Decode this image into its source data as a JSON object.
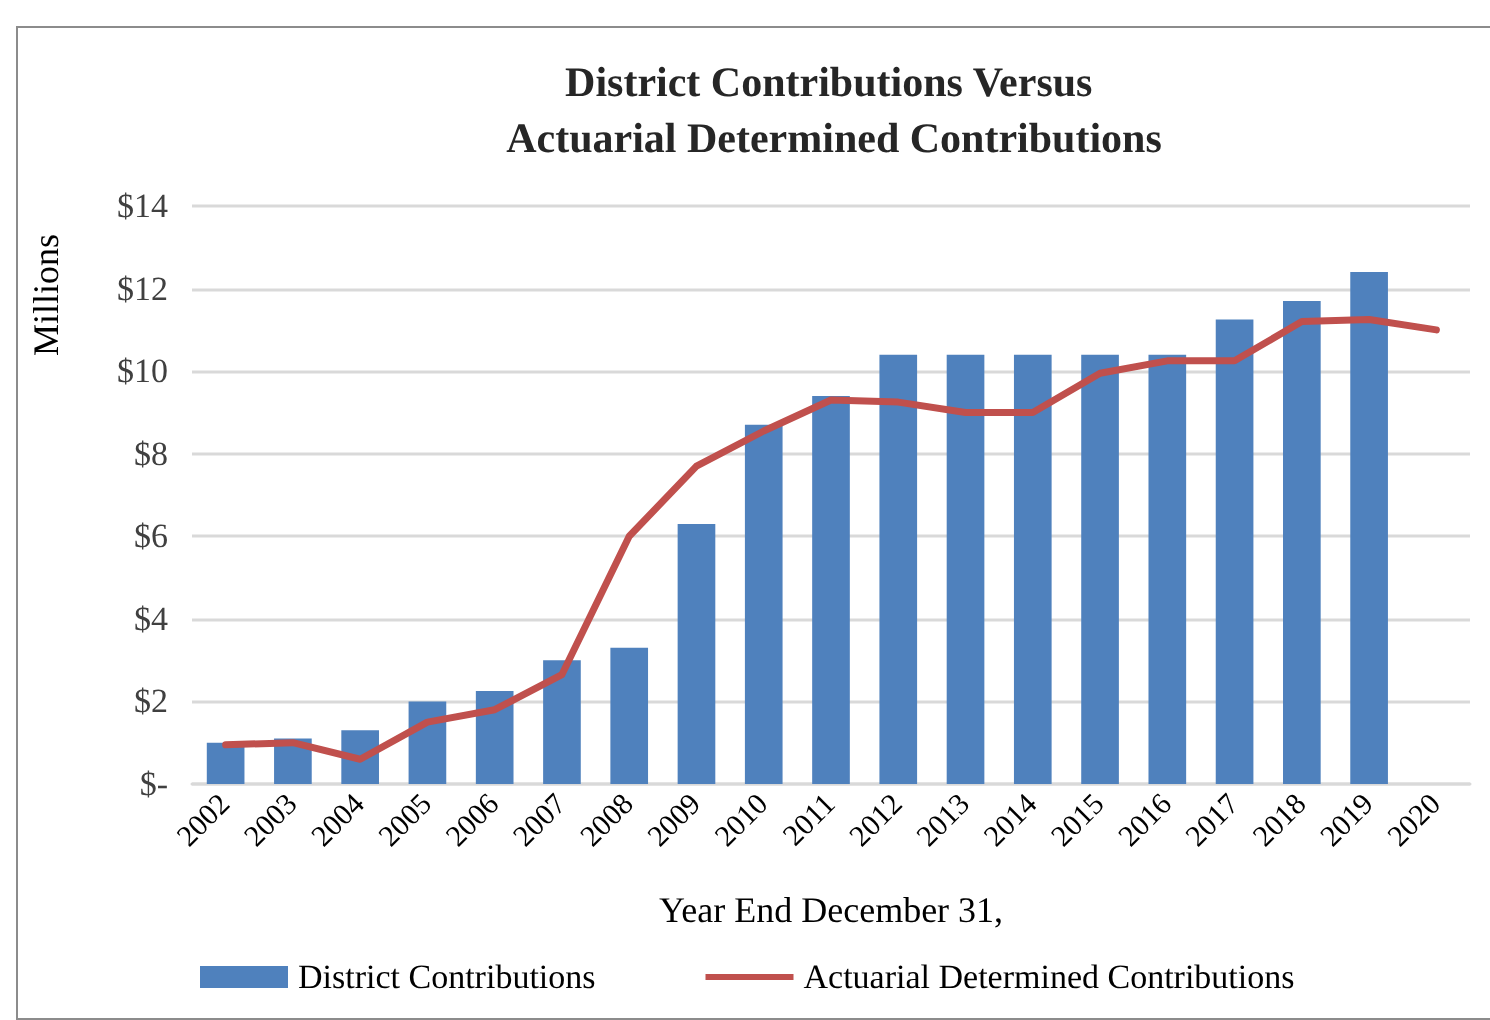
{
  "chart_data": {
    "type": "bar",
    "title": "District Contributions Versus Actuarial Determined Contributions",
    "xlabel": "Year End December 31,",
    "ylabel": "Millions",
    "categories": [
      "2002",
      "2003",
      "2004",
      "2005",
      "2006",
      "2007",
      "2008",
      "2009",
      "2010",
      "2011",
      "2012",
      "2013",
      "2014",
      "2015",
      "2016",
      "2017",
      "2018",
      "2019",
      "2020"
    ],
    "series": [
      {
        "name": "District Contributions",
        "color": "#4f81bd",
        "values": [
          1.0,
          1.1,
          1.3,
          2.0,
          2.25,
          3.0,
          3.3,
          6.3,
          8.7,
          9.4,
          10.4,
          10.4,
          10.4,
          10.4,
          10.4,
          11.25,
          11.7,
          12.4,
          null
        ]
      },
      {
        "name": "Actuarial Determined Contributions",
        "type": "line",
        "color": "#c0504d",
        "values": [
          0.95,
          1.0,
          0.6,
          1.5,
          1.8,
          2.65,
          6.0,
          7.7,
          8.55,
          9.3,
          9.25,
          9.0,
          9.0,
          9.95,
          10.25,
          10.25,
          11.2,
          11.25,
          11.0
        ]
      }
    ],
    "ylim": [
      0,
      14
    ],
    "yticks": [
      {
        "value": 0,
        "label": "$-"
      },
      {
        "value": 2,
        "label": "$2"
      },
      {
        "value": 4,
        "label": "$4"
      },
      {
        "value": 6,
        "label": "$6"
      },
      {
        "value": 8,
        "label": "$8"
      },
      {
        "value": 10,
        "label": "$10"
      },
      {
        "value": 12,
        "label": "$12"
      },
      {
        "value": 14,
        "label": "$14"
      }
    ],
    "grid": "y",
    "legend": "bottom",
    "marker": "none"
  }
}
